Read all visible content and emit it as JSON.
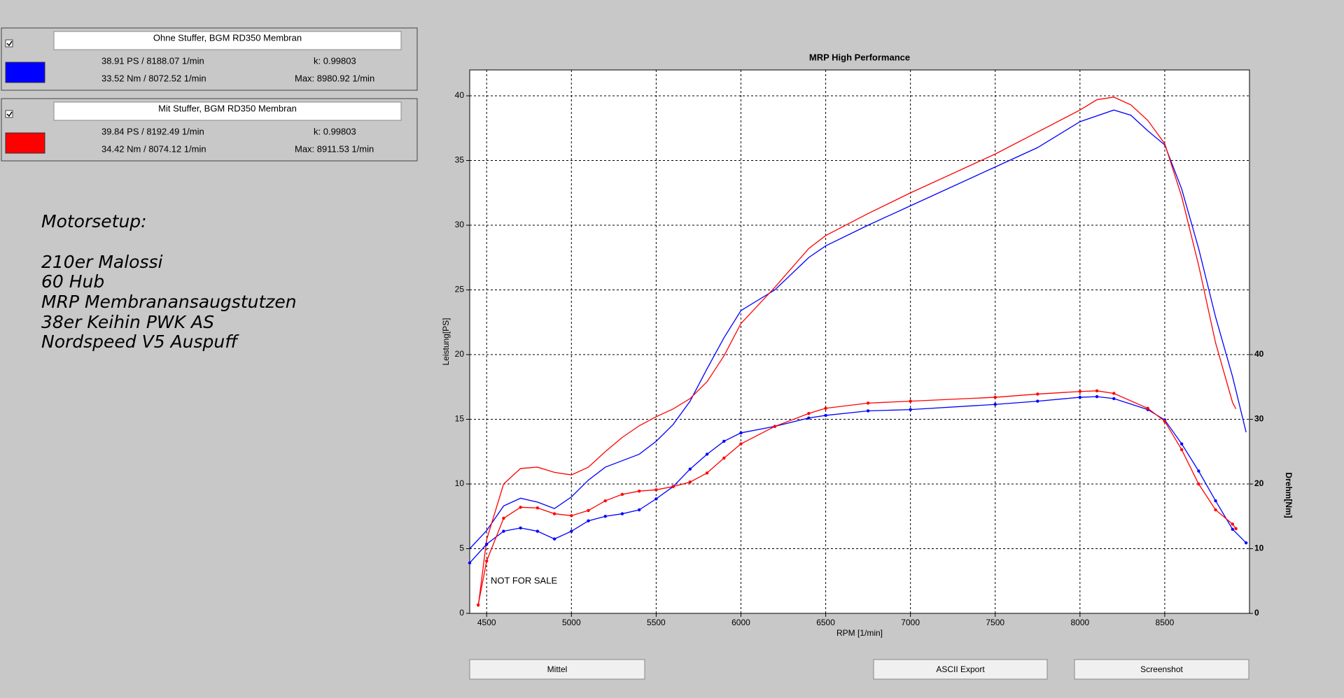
{
  "runs": [
    {
      "name": "Ohne Stuffer, BGM RD350 Membran",
      "color": "#0000ff",
      "power": "38.91 PS / 8188.07 1/min",
      "k": "k: 0.99803",
      "torque": "33.52 Nm / 8072.52 1/min",
      "max": "Max: 8980.92 1/min"
    },
    {
      "name": "Mit Stuffer, BGM RD350 Membran",
      "color": "#ff0000",
      "power": "39.84 PS / 8192.49 1/min",
      "k": "k: 0.99803",
      "torque": "34.42 Nm / 8074.12 1/min",
      "max": "Max: 8911.53 1/min"
    }
  ],
  "notes": [
    "Motorsetup:",
    "210er Malossi",
    "60 Hub",
    "MRP Membranansaugstutzen",
    "38er Keihin PWK AS",
    "Nordspeed V5 Auspuff"
  ],
  "buttons": [
    "Mittel",
    "ASCII Export",
    "Screenshot"
  ],
  "chart_data": {
    "type": "line",
    "title": "MRP High Performance",
    "x_label": "RPM [1/min]",
    "y_label": "Leistung[PS]",
    "y2_label": "Drehm[Nm]",
    "annotation": "NOT FOR SALE",
    "grid": true,
    "xlim": [
      4400,
      9000
    ],
    "xticks": [
      4500,
      5000,
      5500,
      6000,
      6500,
      7000,
      7500,
      8000,
      8500
    ],
    "ylim": [
      0,
      42
    ],
    "yticks": [
      0,
      5,
      10,
      15,
      20,
      25,
      30,
      35,
      40
    ],
    "y2lim": [
      0,
      84
    ],
    "y2ticks": [
      0,
      10,
      20,
      30,
      40
    ],
    "series": [
      {
        "color": "#0000ff",
        "markers": false,
        "x": [
          4400,
          4500,
          4600,
          4700,
          4800,
          4900,
          5000,
          5100,
          5200,
          5300,
          5400,
          5500,
          5600,
          5700,
          5800,
          5900,
          6000,
          6200,
          6400,
          6500,
          6750,
          7000,
          7500,
          7750,
          8000,
          8200,
          8300,
          8400,
          8500,
          8600,
          8700,
          8800,
          8900,
          8980
        ],
        "values": [
          5.0,
          6.4,
          8.3,
          8.9,
          8.6,
          8.1,
          9.0,
          10.3,
          11.3,
          11.8,
          12.3,
          13.3,
          14.6,
          16.4,
          18.9,
          21.3,
          23.4,
          25.0,
          27.5,
          28.4,
          30.0,
          31.5,
          34.5,
          36.0,
          38.0,
          38.9,
          38.5,
          37.3,
          36.2,
          32.8,
          28.2,
          22.9,
          18.3,
          14.0
        ]
      },
      {
        "color": "#ff0000",
        "markers": false,
        "x": [
          4450,
          4500,
          4600,
          4700,
          4800,
          4900,
          5000,
          5100,
          5200,
          5300,
          5400,
          5500,
          5600,
          5700,
          5800,
          5900,
          6000,
          6200,
          6400,
          6500,
          6750,
          7000,
          7500,
          7750,
          8000,
          8100,
          8200,
          8300,
          8400,
          8500,
          8600,
          8700,
          8800,
          8900,
          8920
        ],
        "values": [
          0.5,
          5.7,
          10.0,
          11.2,
          11.3,
          10.9,
          10.7,
          11.3,
          12.5,
          13.6,
          14.5,
          15.2,
          15.8,
          16.6,
          17.9,
          19.9,
          22.4,
          25.2,
          28.2,
          29.2,
          30.9,
          32.5,
          35.5,
          37.2,
          38.9,
          39.7,
          39.9,
          39.3,
          38.1,
          36.3,
          32.2,
          26.9,
          20.9,
          16.3,
          15.8
        ]
      },
      {
        "color": "#0000ff",
        "markers": true,
        "axis": "y2",
        "x": [
          4400,
          4500,
          4600,
          4700,
          4800,
          4900,
          5000,
          5100,
          5200,
          5300,
          5400,
          5500,
          5600,
          5700,
          5800,
          5900,
          6000,
          6200,
          6400,
          6500,
          6750,
          7000,
          7500,
          7750,
          8000,
          8100,
          8200,
          8400,
          8500,
          8600,
          8700,
          8800,
          8900,
          8980
        ],
        "values": [
          7.8,
          10.7,
          12.7,
          13.2,
          12.7,
          11.5,
          12.7,
          14.3,
          15.0,
          15.4,
          16.0,
          17.7,
          19.6,
          22.3,
          24.6,
          26.6,
          27.9,
          28.9,
          30.2,
          30.6,
          31.3,
          31.5,
          32.3,
          32.8,
          33.4,
          33.5,
          33.2,
          31.5,
          29.9,
          26.2,
          22.0,
          17.4,
          13.0,
          10.9
        ]
      },
      {
        "color": "#ff0000",
        "markers": true,
        "axis": "y2",
        "x": [
          4450,
          4500,
          4600,
          4700,
          4800,
          4900,
          5000,
          5100,
          5200,
          5300,
          5400,
          5500,
          5600,
          5700,
          5800,
          5900,
          6000,
          6200,
          6400,
          6500,
          6750,
          7000,
          7500,
          7750,
          8000,
          8100,
          8200,
          8400,
          8500,
          8600,
          8700,
          8800,
          8900,
          8920
        ],
        "values": [
          1.3,
          8.1,
          14.7,
          16.4,
          16.3,
          15.4,
          15.1,
          15.9,
          17.4,
          18.4,
          18.9,
          19.1,
          19.6,
          20.3,
          21.7,
          24.0,
          26.2,
          28.9,
          30.9,
          31.7,
          32.5,
          32.8,
          33.4,
          33.9,
          34.3,
          34.4,
          34.0,
          31.7,
          29.7,
          25.3,
          20.0,
          16.0,
          13.8,
          13.1
        ]
      }
    ]
  }
}
